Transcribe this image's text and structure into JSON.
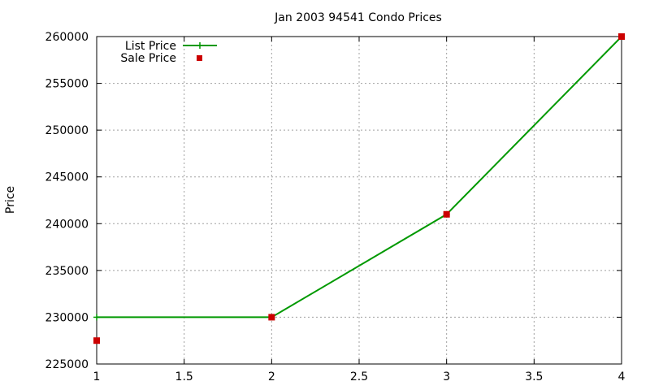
{
  "chart_data": {
    "type": "line",
    "title": "Jan 2003 94541 Condo Prices",
    "xlabel": "",
    "ylabel": "Price",
    "xlim": [
      1,
      4
    ],
    "ylim": [
      225000,
      260000
    ],
    "x_ticks": [
      "1",
      "1.5",
      "2",
      "2.5",
      "3",
      "3.5",
      "4"
    ],
    "y_ticks": [
      "225000",
      "230000",
      "235000",
      "240000",
      "245000",
      "250000",
      "255000",
      "260000"
    ],
    "grid": true,
    "legend_position": "top-left",
    "series": [
      {
        "name": "List Price",
        "style": "line-with-plus",
        "color": "#009900",
        "x": [
          1,
          2,
          3,
          4
        ],
        "y": [
          230000,
          230000,
          241000,
          260000
        ]
      },
      {
        "name": "Sale Price",
        "style": "square-points",
        "color": "#cc0000",
        "x": [
          1,
          2,
          3,
          4
        ],
        "y": [
          227500,
          230000,
          241000,
          260000
        ]
      }
    ]
  }
}
